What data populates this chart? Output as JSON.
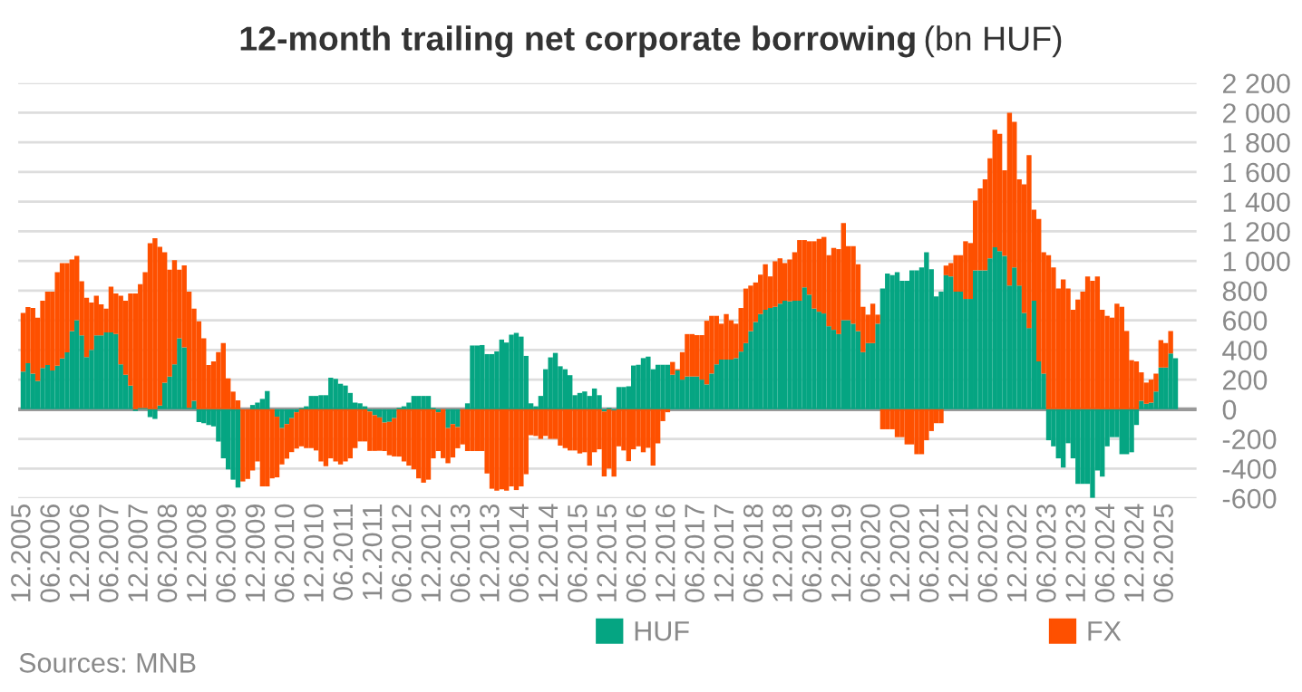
{
  "chart_data": {
    "type": "bar",
    "title": "12-month trailing net corporate borrowing",
    "subtitle": "(bn HUF)",
    "stacked": true,
    "categories": [
      "12.2005",
      null,
      null,
      null,
      null,
      null,
      "06.2006",
      null,
      null,
      null,
      null,
      null,
      "12.2006",
      null,
      null,
      null,
      null,
      null,
      "06.2007",
      null,
      null,
      null,
      null,
      null,
      "12.2007",
      null,
      null,
      null,
      null,
      null,
      "06.2008",
      null,
      null,
      null,
      null,
      null,
      "12.2008",
      null,
      null,
      null,
      null,
      null,
      "06.2009",
      null,
      null,
      null,
      null,
      null,
      "12.2009",
      null,
      null,
      null,
      null,
      null,
      "06.2010",
      null,
      null,
      null,
      null,
      null,
      "12.2010",
      null,
      null,
      null,
      null,
      null,
      "06.2011",
      null,
      null,
      null,
      null,
      null,
      "12.2011",
      null,
      null,
      null,
      null,
      null,
      "06.2012",
      null,
      null,
      null,
      null,
      null,
      "12.2012",
      null,
      null,
      null,
      null,
      null,
      "06.2013",
      null,
      null,
      null,
      null,
      null,
      "12.2013",
      null,
      null,
      null,
      null,
      null,
      "06.2014",
      null,
      null,
      null,
      null,
      null,
      "12.2014",
      null,
      null,
      null,
      null,
      null,
      "06.2015",
      null,
      null,
      null,
      null,
      null,
      "12.2015",
      null,
      null,
      null,
      null,
      null,
      "06.2016",
      null,
      null,
      null,
      null,
      null,
      "12.2016",
      null,
      null,
      null,
      null,
      null,
      "06.2017",
      null,
      null,
      null,
      null,
      null,
      "12.2017",
      null,
      null,
      null,
      null,
      null,
      "06.2018",
      null,
      null,
      null,
      null,
      null,
      "12.2018",
      null,
      null,
      null,
      null,
      null,
      "06.2019",
      null,
      null,
      null,
      null,
      null,
      "12.2019",
      null,
      null,
      null,
      null,
      null,
      "06.2020",
      null,
      null,
      null,
      null,
      null,
      "12.2020",
      null,
      null,
      null,
      null,
      null,
      "06.2021",
      null,
      null,
      null,
      null,
      null,
      "12.2021",
      null,
      null,
      null,
      null,
      null,
      "06.2022",
      null,
      null,
      null,
      null,
      null,
      "12.2022",
      null,
      null,
      null,
      null,
      null,
      "06.2023",
      null,
      null,
      null,
      null,
      null,
      "12.2023",
      null,
      null,
      null,
      null,
      null,
      "06.2024",
      null,
      null,
      null,
      null,
      null,
      "12.2024",
      null,
      null,
      null,
      null,
      null,
      "06.2025",
      null,
      null
    ],
    "series": [
      {
        "name": "HUF",
        "color": "#05a582",
        "values": [
          254,
          311,
          241,
          192,
          278,
          299,
          262,
          294,
          343,
          384,
          527,
          601,
          499,
          352,
          400,
          499,
          499,
          519,
          519,
          507,
          303,
          233,
          160,
          -12,
          8,
          8,
          -53,
          -65,
          25,
          180,
          221,
          303,
          479,
          417,
          10,
          57,
          -86,
          -94,
          -106,
          -115,
          -217,
          -331,
          -405,
          -475,
          -528,
          null,
          null,
          29,
          45,
          70,
          123,
          null,
          -50,
          -127,
          -100,
          -60,
          -20,
          8,
          20,
          90,
          90,
          95,
          95,
          213,
          205,
          172,
          160,
          110,
          45,
          40,
          20,
          -15,
          -40,
          -55,
          -90,
          -85,
          -60,
          10,
          20,
          45,
          90,
          90,
          90,
          90,
          10,
          -20,
          null,
          -127,
          -100,
          -120,
          null,
          40,
          430,
          430,
          433,
          372,
          372,
          390,
          470,
          450,
          503,
          515,
          490,
          360,
          40,
          20,
          90,
          270,
          350,
          380,
          290,
          270,
          230,
          95,
          110,
          120,
          90,
          140,
          95,
          -15,
          10,
          -8,
          150,
          150,
          155,
          295,
          300,
          345,
          355,
          270,
          300,
          300,
          300,
          233,
          262,
          200,
          221,
          221,
          221,
          200,
          168,
          241,
          303,
          335,
          335,
          335,
          345,
          389,
          446,
          527,
          589,
          642,
          671,
          683,
          691,
          712,
          732,
          728,
          732,
          732,
          822,
          773,
          679,
          658,
          646,
          560,
          536,
          507,
          601,
          601,
          577,
          527,
          385,
          446,
          446,
          577,
          814,
          916,
          904,
          924,
          867,
          867,
          937,
          937,
          957,
          1059,
          945,
          761,
          793,
          904,
          896,
          793,
          793,
          744,
          744,
          937,
          937,
          937,
          1018,
          1092,
          1067,
          1035,
          834,
          957,
          834,
          650,
          548,
          732,
          323,
          241,
          -209,
          -250,
          -331,
          -393,
          -229,
          -331,
          -503,
          -503,
          -503,
          -597,
          -413,
          -454,
          -250,
          -188,
          -188,
          -303,
          -303,
          -290,
          -106,
          57,
          37,
          45,
          119,
          282,
          282,
          376,
          344
        ]
      },
      {
        "name": "FX",
        "color": "#fe5000",
        "values": [
          396,
          379,
          442,
          426,
          454,
          494,
          531,
          630,
          642,
          601,
          483,
          434,
          364,
          400,
          320,
          266,
          208,
          160,
          307,
          274,
          462,
          499,
          621,
          781,
          835,
          916,
          1120,
          1153,
          1071,
          879,
          720,
          703,
          462,
          553,
          783,
          622,
          593,
          479,
          299,
          323,
          385,
          446,
          209,
          119,
          60,
          -487,
          -470,
          -413,
          -352,
          -520,
          -520,
          -466,
          -409,
          -245,
          -233,
          -229,
          -245,
          -250,
          -262,
          -262,
          -278,
          -352,
          -384,
          -331,
          -352,
          -372,
          -352,
          -331,
          -262,
          -217,
          -217,
          -266,
          -241,
          -225,
          -192,
          -225,
          -258,
          -319,
          -352,
          -380,
          -405,
          -466,
          -495,
          -475,
          -331,
          -262,
          -330,
          -237,
          -225,
          -143,
          -237,
          -282,
          -282,
          -282,
          -282,
          -433,
          -536,
          -549,
          -540,
          -549,
          -520,
          -545,
          -520,
          -438,
          -175,
          -180,
          -200,
          -180,
          -200,
          -200,
          -245,
          -262,
          -278,
          -278,
          -298,
          -290,
          -380,
          -290,
          -270,
          -438,
          -400,
          -446,
          -250,
          -278,
          -350,
          -270,
          -250,
          -290,
          -260,
          -380,
          -230,
          -80,
          -20,
          86,
          8,
          185,
          286,
          286,
          279,
          300,
          429,
          389,
          327,
          242,
          307,
          265,
          232,
          294,
          368,
          307,
          266,
          266,
          307,
          213,
          307,
          306,
          254,
          282,
          327,
          409,
          319,
          360,
          454,
          491,
          516,
          479,
          552,
          573,
          655,
          499,
          523,
          451,
          306,
          192,
          266,
          61,
          -135,
          -135,
          -135,
          -188,
          -188,
          -237,
          -237,
          -303,
          -303,
          -209,
          -147,
          -94,
          -94,
          65,
          90,
          246,
          246,
          389,
          377,
          470,
          552,
          613,
          675,
          793,
          790,
          576,
          1166,
          982,
          716,
          867,
          1166,
          614,
          961,
          818,
          1039,
          957,
          814,
          875,
          814,
          671,
          740,
          793,
          896,
          867,
          896,
          671,
          630,
          618,
          712,
          691,
          528,
          331,
          323,
          192,
          143,
          155,
          122,
          184,
          164,
          152,
          null
        ]
      }
    ],
    "ylim": [
      -600,
      2200
    ],
    "yticks": [
      {
        "value": -600,
        "label": "-600"
      },
      {
        "value": -400,
        "label": "-400"
      },
      {
        "value": -200,
        "label": "-200"
      },
      0,
      200,
      400,
      600,
      800,
      {
        "value": 1000,
        "label": "1 000"
      },
      {
        "value": 1200,
        "label": "1 200"
      },
      {
        "value": 1400,
        "label": "1 400"
      },
      {
        "value": 1600,
        "label": "1 600"
      },
      {
        "value": 1800,
        "label": "1 800"
      },
      {
        "value": 2000,
        "label": "2 000"
      },
      {
        "value": 2200,
        "label": "2 200"
      }
    ],
    "grid": "y",
    "legend": "bottom",
    "ref_lines": [
      {
        "axis": "y",
        "value": 0,
        "color": "#999999"
      }
    ],
    "annotations": [
      "Sources: MNB"
    ]
  }
}
